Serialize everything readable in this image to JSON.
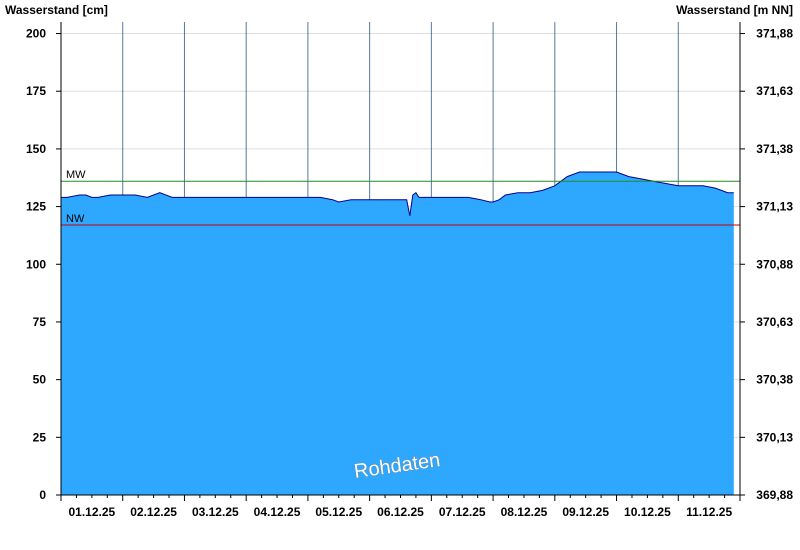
{
  "chart_data": {
    "type": "area",
    "ylabel_left": "Wasserstand [cm]",
    "ylabel_right": "Wasserstand [m NN]",
    "watermark": "Rohdaten",
    "ylim": [
      0,
      205
    ],
    "yticks_left": [
      0,
      25,
      50,
      75,
      100,
      125,
      150,
      175,
      200
    ],
    "yticks_right": [
      "369,88",
      "370,13",
      "370,38",
      "370,63",
      "370,88",
      "371,13",
      "371,38",
      "371,63",
      "371,88"
    ],
    "x_day_range": [
      0,
      11
    ],
    "x_tick_labels": [
      "01.12.25",
      "02.12.25",
      "03.12.25",
      "04.12.25",
      "05.12.25",
      "06.12.25",
      "07.12.25",
      "08.12.25",
      "09.12.25",
      "10.12.25",
      "11.12.25"
    ],
    "grid": true,
    "fill_color": "#2ea8ff",
    "line_color": "#00008b",
    "reference_lines": [
      {
        "label": "MW",
        "value": 136,
        "color": "#228b22"
      },
      {
        "label": "NW",
        "value": 117,
        "color": "#cc0000"
      }
    ],
    "series": [
      {
        "x": [
          0,
          0.1,
          0.3,
          0.4,
          0.5,
          0.6,
          0.8,
          1.0,
          1.2,
          1.4,
          1.5,
          1.6,
          1.8,
          2.0,
          2.2,
          2.4,
          2.6,
          2.8,
          3.0,
          3.3,
          3.6,
          4.0,
          4.2,
          4.4,
          4.5,
          4.7,
          4.8,
          5.0,
          5.3,
          5.6,
          5.65,
          5.7,
          5.75,
          5.8,
          6.0,
          6.2,
          6.4,
          6.6,
          6.8,
          6.95,
          7.0,
          7.1,
          7.2,
          7.4,
          7.6,
          7.8,
          8.0,
          8.2,
          8.4,
          8.6,
          8.8,
          9.0,
          9.2,
          9.4,
          9.6,
          9.8,
          10.0,
          10.2,
          10.4,
          10.6,
          10.8,
          10.9
        ],
        "y": [
          129,
          129,
          130,
          130,
          129,
          129,
          130,
          130,
          130,
          129,
          130,
          131,
          129,
          129,
          129,
          129,
          129,
          129,
          129,
          129,
          129,
          129,
          129,
          128,
          127,
          128,
          128,
          128,
          128,
          128,
          121,
          130,
          131,
          129,
          129,
          129,
          129,
          129,
          128,
          127,
          127,
          128,
          130,
          131,
          131,
          132,
          134,
          138,
          140,
          140,
          140,
          140,
          138,
          137,
          136,
          135,
          134,
          134,
          134,
          133,
          131,
          131
        ]
      }
    ]
  }
}
